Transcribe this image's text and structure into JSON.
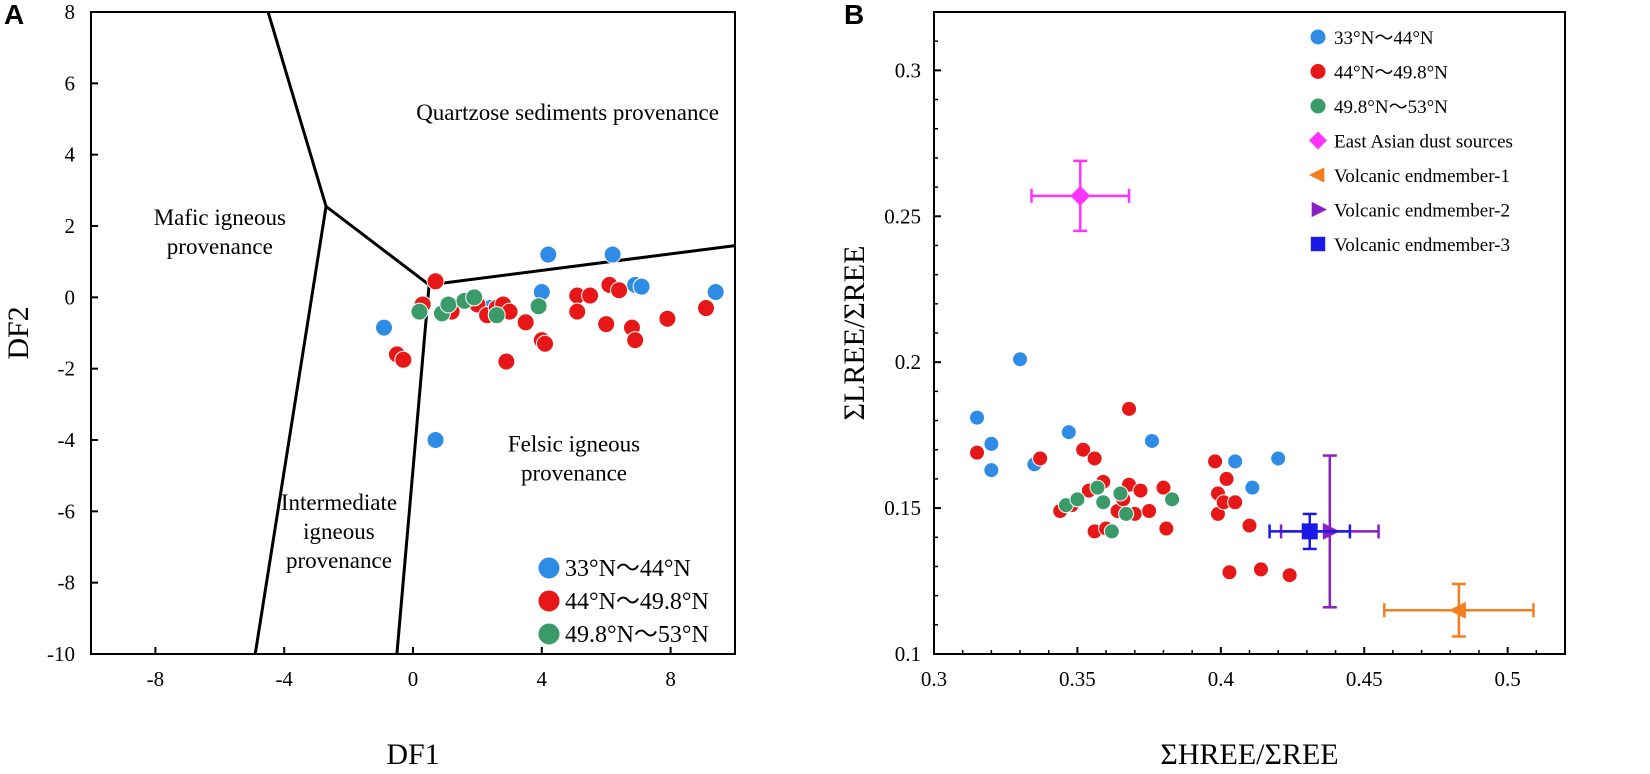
{
  "chart_data": [
    {
      "panel": "A",
      "type": "scatter",
      "xlabel": "DF1",
      "ylabel": "DF2",
      "xlim": [
        -10,
        10
      ],
      "ylim": [
        -10,
        8
      ],
      "xticks": [
        -8,
        -4,
        0,
        4,
        8
      ],
      "yticks": [
        8,
        6,
        4,
        2,
        0,
        -2,
        -4,
        -6,
        -8,
        -10
      ],
      "grid": false,
      "legend_position": "bottom-right",
      "boundary_lines": [
        [
          [
            -4.5,
            8
          ],
          [
            -2.7,
            2.55
          ],
          [
            0.5,
            0.35
          ]
        ],
        [
          [
            -2.7,
            2.55
          ],
          [
            -4.9,
            -10
          ]
        ],
        [
          [
            0.5,
            0.35
          ],
          [
            -0.5,
            -10
          ]
        ],
        [
          [
            0.5,
            0.35
          ],
          [
            10,
            1.45
          ]
        ]
      ],
      "region_labels": [
        {
          "lines": [
            "Quartzose sediments provenance"
          ],
          "x": 4.8,
          "y": 5.2
        },
        {
          "lines": [
            "Mafic igneous",
            "provenance"
          ],
          "x": -6.0,
          "y": 1.85
        },
        {
          "lines": [
            "Felsic igneous",
            "provenance"
          ],
          "x": 5.0,
          "y": -4.5
        },
        {
          "lines": [
            "Intermediate",
            "igneous",
            "provenance"
          ],
          "x": -2.3,
          "y": -6.55
        }
      ],
      "series": [
        {
          "name": "33°N～44°N",
          "color": "#2e8ce6",
          "points": [
            [
              -0.9,
              -0.85
            ],
            [
              4.2,
              1.2
            ],
            [
              6.2,
              1.2
            ],
            [
              6.9,
              0.35
            ],
            [
              7.1,
              0.3
            ],
            [
              9.4,
              0.15
            ],
            [
              4.0,
              0.15
            ],
            [
              2.4,
              -0.3
            ],
            [
              0.7,
              -4.0
            ]
          ]
        },
        {
          "name": "44°N～49.8°N",
          "color": "#e81717",
          "points": [
            [
              -0.5,
              -1.6
            ],
            [
              -0.3,
              -1.75
            ],
            [
              0.7,
              0.45
            ],
            [
              0.3,
              -0.2
            ],
            [
              1.2,
              -0.4
            ],
            [
              2.0,
              -0.2
            ],
            [
              2.3,
              -0.5
            ],
            [
              2.6,
              -0.3
            ],
            [
              2.8,
              -0.2
            ],
            [
              3.0,
              -0.4
            ],
            [
              2.9,
              -1.8
            ],
            [
              3.5,
              -0.7
            ],
            [
              4.0,
              -1.2
            ],
            [
              4.1,
              -1.3
            ],
            [
              5.1,
              0.05
            ],
            [
              5.5,
              0.05
            ],
            [
              5.1,
              -0.4
            ],
            [
              6.1,
              0.35
            ],
            [
              6.4,
              0.2
            ],
            [
              6.0,
              -0.75
            ],
            [
              6.8,
              -0.85
            ],
            [
              6.9,
              -1.2
            ],
            [
              7.9,
              -0.6
            ],
            [
              9.1,
              -0.3
            ]
          ]
        },
        {
          "name": "49.8°N～53°N",
          "color": "#3a9a6a",
          "points": [
            [
              0.2,
              -0.4
            ],
            [
              0.9,
              -0.45
            ],
            [
              1.1,
              -0.2
            ],
            [
              1.6,
              -0.1
            ],
            [
              1.9,
              0.0
            ],
            [
              2.6,
              -0.5
            ],
            [
              3.9,
              -0.25
            ]
          ]
        }
      ]
    },
    {
      "panel": "B",
      "type": "scatter",
      "xlabel": "ΣHREE/ΣREE",
      "ylabel": "ΣLREE/ΣREE",
      "xlim": [
        0.3,
        0.52
      ],
      "ylim": [
        0.1,
        0.32
      ],
      "xticks": [
        0.3,
        0.35,
        0.4,
        0.45,
        0.5
      ],
      "xtick_labels": [
        "0.3",
        "0.35",
        "0.4",
        "0.45",
        "0.5"
      ],
      "yticks": [
        0.1,
        0.15,
        0.2,
        0.25,
        0.3
      ],
      "ytick_labels": [
        "0.1",
        "0.15",
        "0.2",
        "0.25",
        "0.3"
      ],
      "grid": false,
      "legend_position": "top-right",
      "series": [
        {
          "name": "33°N～44°N",
          "color": "#2e8ce6",
          "marker": "circle",
          "points": [
            [
              0.315,
              0.181
            ],
            [
              0.32,
              0.172
            ],
            [
              0.32,
              0.163
            ],
            [
              0.33,
              0.201
            ],
            [
              0.335,
              0.165
            ],
            [
              0.347,
              0.176
            ],
            [
              0.376,
              0.173
            ],
            [
              0.405,
              0.166
            ],
            [
              0.411,
              0.157
            ],
            [
              0.42,
              0.167
            ]
          ]
        },
        {
          "name": "44°N～49.8°N",
          "color": "#e81717",
          "marker": "circle",
          "points": [
            [
              0.315,
              0.169
            ],
            [
              0.337,
              0.167
            ],
            [
              0.344,
              0.149
            ],
            [
              0.348,
              0.151
            ],
            [
              0.352,
              0.17
            ],
            [
              0.354,
              0.156
            ],
            [
              0.356,
              0.167
            ],
            [
              0.356,
              0.142
            ],
            [
              0.359,
              0.159
            ],
            [
              0.36,
              0.143
            ],
            [
              0.364,
              0.149
            ],
            [
              0.366,
              0.153
            ],
            [
              0.368,
              0.184
            ],
            [
              0.368,
              0.158
            ],
            [
              0.37,
              0.148
            ],
            [
              0.372,
              0.156
            ],
            [
              0.375,
              0.149
            ],
            [
              0.38,
              0.157
            ],
            [
              0.381,
              0.143
            ],
            [
              0.398,
              0.166
            ],
            [
              0.399,
              0.155
            ],
            [
              0.399,
              0.148
            ],
            [
              0.401,
              0.152
            ],
            [
              0.402,
              0.16
            ],
            [
              0.403,
              0.128
            ],
            [
              0.405,
              0.152
            ],
            [
              0.41,
              0.144
            ],
            [
              0.414,
              0.129
            ],
            [
              0.424,
              0.127
            ]
          ]
        },
        {
          "name": "49.8°N～53°N",
          "color": "#3a9a6a",
          "marker": "circle",
          "points": [
            [
              0.346,
              0.151
            ],
            [
              0.35,
              0.153
            ],
            [
              0.357,
              0.157
            ],
            [
              0.359,
              0.152
            ],
            [
              0.362,
              0.142
            ],
            [
              0.365,
              0.155
            ],
            [
              0.367,
              0.148
            ],
            [
              0.383,
              0.153
            ]
          ]
        },
        {
          "name": "East Asian dust sources",
          "color": "#ff33ff",
          "marker": "diamond",
          "points": [
            [
              0.351,
              0.257
            ]
          ],
          "xerr": 0.017,
          "yerr": 0.012
        },
        {
          "name": "Volcanic endmember-1",
          "color": "#f57c1f",
          "marker": "triangle-left",
          "points": [
            [
              0.483,
              0.115
            ]
          ],
          "xerr": 0.026,
          "yerr": 0.009
        },
        {
          "name": "Volcanic endmember-2",
          "color": "#8c1fc4",
          "marker": "triangle-right",
          "points": [
            [
              0.438,
              0.142
            ]
          ],
          "xerr": 0.017,
          "yerr": 0.026
        },
        {
          "name": "Volcanic endmember-3",
          "color": "#1a1ae6",
          "marker": "square",
          "points": [
            [
              0.431,
              0.142
            ]
          ],
          "xerr": 0.014,
          "yerr": 0.006
        }
      ]
    }
  ]
}
